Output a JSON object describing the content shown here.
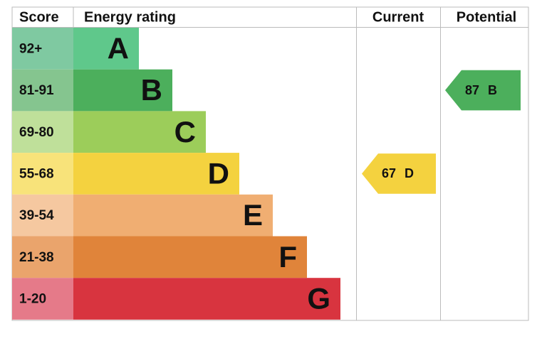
{
  "header": {
    "score": "Score",
    "rating": "Energy rating",
    "current": "Current",
    "potential": "Potential"
  },
  "bands": [
    {
      "score": "92+",
      "letter": "A"
    },
    {
      "score": "81-91",
      "letter": "B"
    },
    {
      "score": "69-80",
      "letter": "C"
    },
    {
      "score": "55-68",
      "letter": "D"
    },
    {
      "score": "39-54",
      "letter": "E"
    },
    {
      "score": "21-38",
      "letter": "F"
    },
    {
      "score": "1-20",
      "letter": "G"
    }
  ],
  "current": {
    "value": 67,
    "band": "D"
  },
  "potential": {
    "value": 87,
    "band": "B"
  }
}
